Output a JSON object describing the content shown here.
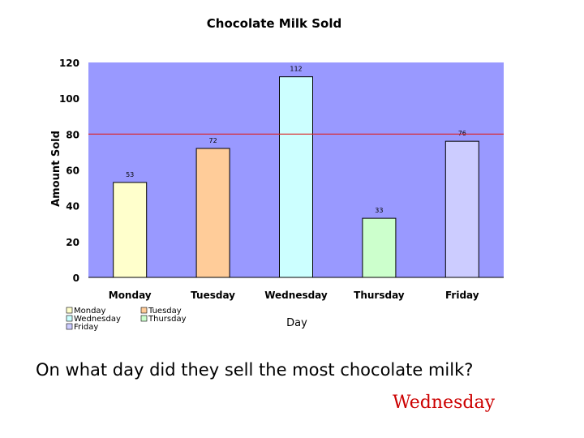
{
  "chart_data": {
    "type": "bar",
    "title": "Chocolate Milk Sold",
    "xlabel": "Day",
    "ylabel": "Amount Sold",
    "categories": [
      "Monday",
      "Tuesday",
      "Wednesday",
      "Thursday",
      "Friday"
    ],
    "values": [
      53,
      72,
      112,
      33,
      76
    ],
    "data_labels": [
      "53",
      "72",
      "112",
      "33",
      "76"
    ],
    "colors": [
      "#ffffcc",
      "#ffcc99",
      "#ccffff",
      "#ccffcc",
      "#ccccff"
    ],
    "ylim": [
      0,
      120
    ],
    "yticks": [
      "0",
      "20",
      "40",
      "60",
      "80",
      "100",
      "120"
    ],
    "reference_line": 80,
    "reference_line_color": "#dd2222",
    "plot_background": "#9999ff",
    "grid": false,
    "legend_position": "bottom-left",
    "legend": [
      "Monday",
      "Tuesday",
      "Wednesday",
      "Thursday",
      "Friday"
    ]
  },
  "question": "On what day did they sell the most chocolate milk?",
  "answer": "Wednesday"
}
